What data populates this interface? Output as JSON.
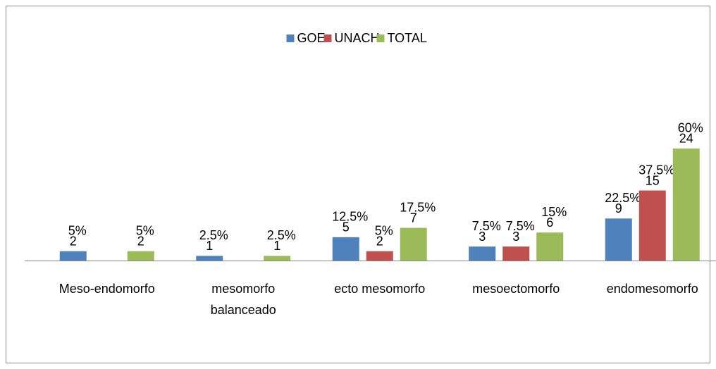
{
  "chart_data": {
    "type": "bar",
    "categories": [
      "Meso-endomorfo",
      "mesomorfo balanceado",
      "ecto mesomorfo",
      "mesoectomorfo",
      "endomesomorfo"
    ],
    "series": [
      {
        "name": "GOE",
        "color": "#4f81bd",
        "values": [
          2,
          1,
          5,
          3,
          9
        ],
        "percent_labels": [
          "5%",
          "2.5%",
          "12.5%",
          "7.5%",
          "22.5%"
        ]
      },
      {
        "name": "UNACH",
        "color": "#c0504d",
        "values": [
          null,
          null,
          2,
          3,
          15
        ],
        "percent_labels": [
          null,
          null,
          "5%",
          "7.5%",
          "37.5%"
        ]
      },
      {
        "name": "TOTAL",
        "color": "#9bbb59",
        "values": [
          2,
          1,
          7,
          6,
          24
        ],
        "percent_labels": [
          "5%",
          "2.5%",
          "17.5%",
          "15%",
          "60%"
        ]
      }
    ],
    "ylim": [
      0,
      30
    ],
    "legend": "top"
  }
}
